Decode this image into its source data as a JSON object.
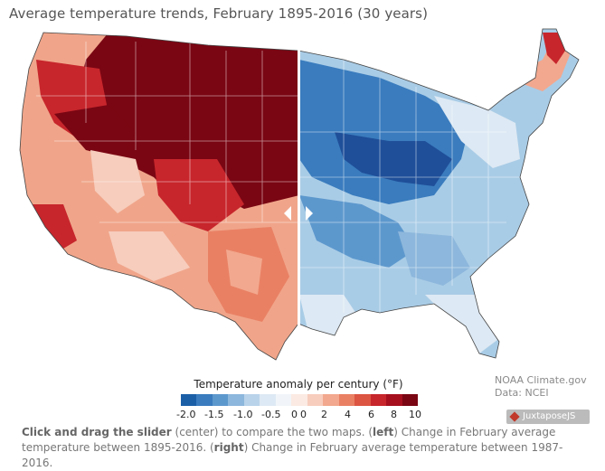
{
  "title": "Average temperature trends, February 1895-2016 (30 years)",
  "legend": {
    "title": "Temperature anomaly per century (°F)",
    "neg_ticks": [
      "-2.0",
      "-1.5",
      "-1.0",
      "-0.5",
      "0"
    ],
    "pos_ticks": [
      "0",
      "2",
      "4",
      "6",
      "8",
      "10"
    ],
    "neg_colors": [
      "#1b5fa7",
      "#3a7cbe",
      "#5d98cd",
      "#8db7dc",
      "#b9d3ea",
      "#dde9f4",
      "#f1f5f9"
    ],
    "pos_colors": [
      "#fbeae4",
      "#f7cdbd",
      "#f2a88e",
      "#e98064",
      "#dc5442",
      "#c7262c",
      "#a50f1e",
      "#7a0613"
    ]
  },
  "credit": {
    "line1": "NOAA Climate.gov",
    "line2": "Data: NCEI"
  },
  "badge": "JuxtaposeJS",
  "caption": {
    "b1": "Click and drag the slider",
    "t1": " (center) to compare the two maps. (",
    "b2": "left",
    "t2": ") Change in February average temperature between 1895-2016. (",
    "b3": "right",
    "t3": ") Change in February average temperature between 1987-2016."
  },
  "colors": {
    "left_dark": "#7a0613",
    "left_mid": "#c7262c",
    "left_light": "#f2a88e",
    "right_dark": "#1f4f99",
    "right_mid": "#3a7cbe",
    "right_light": "#a9cce6"
  }
}
